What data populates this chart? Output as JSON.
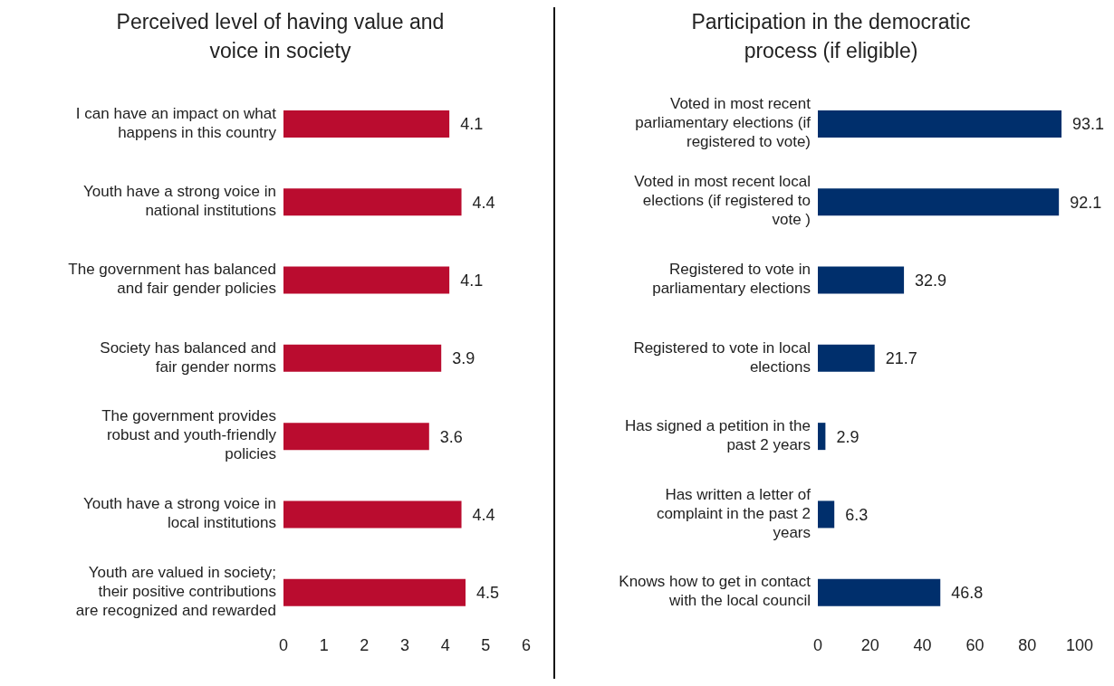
{
  "chart_data": [
    {
      "type": "bar",
      "orientation": "horizontal",
      "title": "Perceived level of having value and voice in society",
      "categories": [
        "I can have an impact on what happens in this country",
        "Youth have a strong voice in national institutions",
        "The government has balanced and fair gender policies",
        "Society has balanced and fair gender norms",
        "The government provides robust and youth-friendly policies",
        "Youth have a strong voice in local institutions",
        "Youth are valued in society; their positive contributions are recognized and rewarded"
      ],
      "values": [
        4.1,
        4.4,
        4.1,
        3.9,
        3.6,
        4.4,
        4.5
      ],
      "color": "#ba0c2f",
      "xlim": [
        0,
        6
      ],
      "xticks": [
        0,
        1,
        2,
        3,
        4,
        5,
        6
      ],
      "grid": false,
      "legend": false,
      "data_labels": true
    },
    {
      "type": "bar",
      "orientation": "horizontal",
      "title": "Participation in the democratic process (if eligible)",
      "categories": [
        "Voted in most recent parliamentary elections (if registered to vote)",
        "Voted in most recent local elections (if registered to vote )",
        "Registered to vote in parliamentary elections",
        "Registered to vote in local elections",
        "Has signed a petition in the past 2 years",
        "Has written a letter of complaint in the past 2 years",
        "Knows how to get in contact with the local council"
      ],
      "values": [
        93.1,
        92.1,
        32.9,
        21.7,
        2.9,
        6.3,
        46.8
      ],
      "color": "#002f6c",
      "xlim": [
        0,
        100
      ],
      "xticks": [
        0,
        20,
        40,
        60,
        80,
        100
      ],
      "grid": false,
      "legend": false,
      "data_labels": true
    }
  ]
}
